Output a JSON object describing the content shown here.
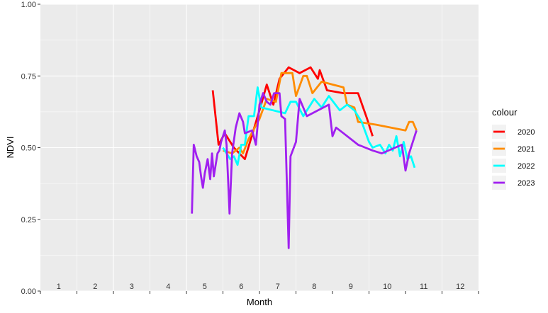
{
  "chart_data": {
    "type": "line",
    "title": "",
    "xlabel": "Month",
    "ylabel": "NDVI",
    "xlim": [
      0,
      12
    ],
    "ylim": [
      0,
      1
    ],
    "x_ticks": [
      "1",
      "2",
      "3",
      "4",
      "5",
      "6",
      "7",
      "8",
      "9",
      "10",
      "11",
      "12"
    ],
    "y_ticks": [
      "0.00",
      "0.25",
      "0.50",
      "0.75",
      "1.00"
    ],
    "y_tick_values": [
      0,
      0.25,
      0.5,
      0.75,
      1.0
    ],
    "grid": true,
    "legend_title": "colour",
    "legend_position": "right",
    "series": [
      {
        "name": "2020",
        "color": "#ff0000",
        "points": [
          [
            4.72,
            0.7
          ],
          [
            4.88,
            0.51
          ],
          [
            5.05,
            0.55
          ],
          [
            5.3,
            0.5
          ],
          [
            5.6,
            0.46
          ],
          [
            6.0,
            0.63
          ],
          [
            6.2,
            0.72
          ],
          [
            6.38,
            0.65
          ],
          [
            6.55,
            0.74
          ],
          [
            6.8,
            0.78
          ],
          [
            7.1,
            0.76
          ],
          [
            7.4,
            0.78
          ],
          [
            7.6,
            0.74
          ],
          [
            7.65,
            0.77
          ],
          [
            7.85,
            0.7
          ],
          [
            8.3,
            0.69
          ],
          [
            8.7,
            0.69
          ],
          [
            8.95,
            0.6
          ],
          [
            9.1,
            0.54
          ]
        ]
      },
      {
        "name": "2021",
        "color": "#ff8c00",
        "points": [
          [
            5.0,
            0.49
          ],
          [
            5.25,
            0.48
          ],
          [
            5.45,
            0.5
          ],
          [
            5.55,
            0.48
          ],
          [
            5.7,
            0.53
          ],
          [
            6.0,
            0.6
          ],
          [
            6.2,
            0.67
          ],
          [
            6.45,
            0.66
          ],
          [
            6.6,
            0.76
          ],
          [
            6.9,
            0.76
          ],
          [
            7.0,
            0.68
          ],
          [
            7.2,
            0.75
          ],
          [
            7.3,
            0.75
          ],
          [
            7.45,
            0.69
          ],
          [
            7.7,
            0.73
          ],
          [
            8.0,
            0.72
          ],
          [
            8.3,
            0.71
          ],
          [
            8.4,
            0.65
          ],
          [
            8.6,
            0.64
          ],
          [
            8.7,
            0.59
          ],
          [
            9.2,
            0.58
          ],
          [
            10.0,
            0.56
          ],
          [
            10.1,
            0.59
          ],
          [
            10.2,
            0.59
          ],
          [
            10.3,
            0.56
          ]
        ]
      },
      {
        "name": "2022",
        "color": "#00ffff",
        "points": [
          [
            5.0,
            0.5
          ],
          [
            5.1,
            0.48
          ],
          [
            5.2,
            0.46
          ],
          [
            5.3,
            0.47
          ],
          [
            5.4,
            0.44
          ],
          [
            5.5,
            0.51
          ],
          [
            5.6,
            0.51
          ],
          [
            5.7,
            0.61
          ],
          [
            5.85,
            0.61
          ],
          [
            5.95,
            0.71
          ],
          [
            6.05,
            0.64
          ],
          [
            6.7,
            0.62
          ],
          [
            6.85,
            0.66
          ],
          [
            7.0,
            0.66
          ],
          [
            7.2,
            0.61
          ],
          [
            7.5,
            0.67
          ],
          [
            7.7,
            0.64
          ],
          [
            7.9,
            0.68
          ],
          [
            8.2,
            0.63
          ],
          [
            8.4,
            0.65
          ],
          [
            8.6,
            0.63
          ],
          [
            8.8,
            0.59
          ],
          [
            9.0,
            0.52
          ],
          [
            9.1,
            0.5
          ],
          [
            9.3,
            0.51
          ],
          [
            9.45,
            0.48
          ],
          [
            9.55,
            0.51
          ],
          [
            9.65,
            0.49
          ],
          [
            9.75,
            0.54
          ],
          [
            9.85,
            0.47
          ],
          [
            9.95,
            0.52
          ],
          [
            10.05,
            0.46
          ],
          [
            10.15,
            0.47
          ],
          [
            10.25,
            0.43
          ]
        ]
      },
      {
        "name": "2023",
        "color": "#a020f0",
        "points": [
          [
            4.15,
            0.27
          ],
          [
            4.2,
            0.51
          ],
          [
            4.28,
            0.47
          ],
          [
            4.35,
            0.45
          ],
          [
            4.4,
            0.4
          ],
          [
            4.45,
            0.36
          ],
          [
            4.5,
            0.41
          ],
          [
            4.58,
            0.46
          ],
          [
            4.65,
            0.39
          ],
          [
            4.7,
            0.48
          ],
          [
            4.75,
            0.4
          ],
          [
            4.8,
            0.44
          ],
          [
            4.85,
            0.48
          ],
          [
            4.9,
            0.49
          ],
          [
            4.95,
            0.52
          ],
          [
            5.05,
            0.56
          ],
          [
            5.1,
            0.51
          ],
          [
            5.18,
            0.27
          ],
          [
            5.25,
            0.48
          ],
          [
            5.35,
            0.57
          ],
          [
            5.45,
            0.62
          ],
          [
            5.55,
            0.59
          ],
          [
            5.6,
            0.55
          ],
          [
            5.8,
            0.56
          ],
          [
            5.9,
            0.51
          ],
          [
            6.0,
            0.65
          ],
          [
            6.1,
            0.69
          ],
          [
            6.2,
            0.66
          ],
          [
            6.3,
            0.65
          ],
          [
            6.4,
            0.69
          ],
          [
            6.5,
            0.69
          ],
          [
            6.55,
            0.69
          ],
          [
            6.6,
            0.61
          ],
          [
            6.7,
            0.6
          ],
          [
            6.8,
            0.15
          ],
          [
            6.85,
            0.47
          ],
          [
            7.0,
            0.52
          ],
          [
            7.1,
            0.67
          ],
          [
            7.3,
            0.61
          ],
          [
            7.9,
            0.65
          ],
          [
            8.0,
            0.54
          ],
          [
            8.1,
            0.57
          ],
          [
            8.3,
            0.55
          ],
          [
            8.7,
            0.51
          ],
          [
            8.9,
            0.5
          ],
          [
            9.1,
            0.49
          ],
          [
            9.35,
            0.48
          ],
          [
            9.9,
            0.51
          ],
          [
            10.0,
            0.42
          ],
          [
            10.1,
            0.48
          ],
          [
            10.2,
            0.52
          ],
          [
            10.3,
            0.56
          ]
        ]
      }
    ]
  }
}
